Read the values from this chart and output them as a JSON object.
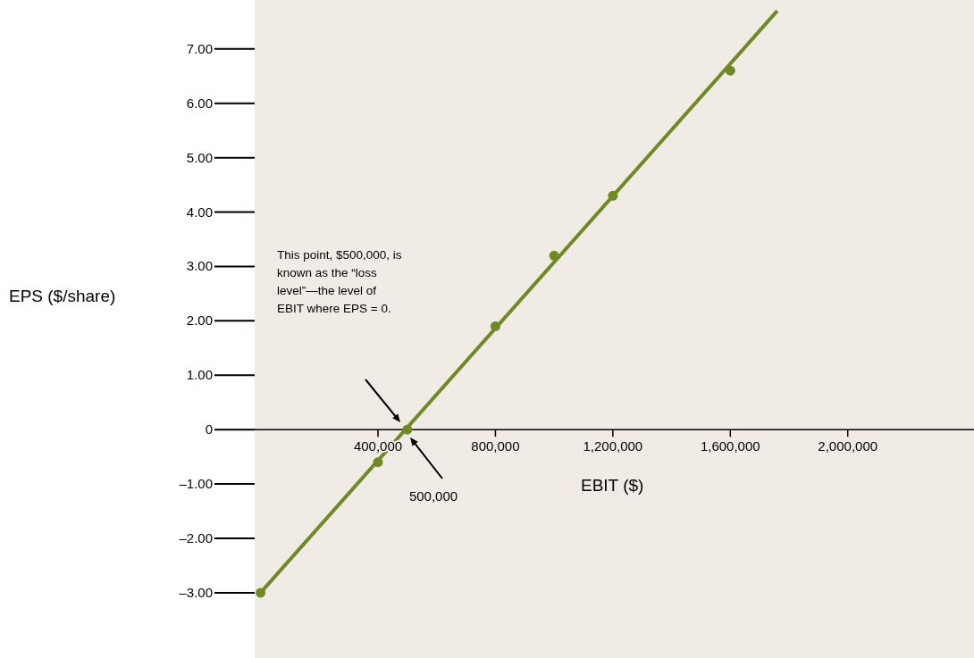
{
  "chart_data": {
    "type": "line",
    "xlabel": "EBIT ($)",
    "ylabel": "EPS ($/share)",
    "series": [
      {
        "color": "#6f8a23",
        "x": [
          0,
          1760000
        ],
        "values": [
          -3,
          7.7
        ],
        "marker": "none"
      },
      {
        "type": "scatter",
        "color": "#6f8a23",
        "x": [
          0,
          400000,
          500000,
          800000,
          1000000,
          1200000,
          1600000
        ],
        "values": [
          -3,
          -0.6,
          0,
          1.9,
          3.2,
          4.3,
          6.6
        ],
        "marker": "circle"
      }
    ],
    "xlim": [
      -20000,
      2430000
    ],
    "ylim": [
      -4.2,
      7.9
    ],
    "xticks": [
      {
        "value": 400000,
        "label": "400,000"
      },
      {
        "value": 800000,
        "label": "800,000"
      },
      {
        "value": 1200000,
        "label": "1,200,000"
      },
      {
        "value": 1600000,
        "label": "1,600,000"
      },
      {
        "value": 2000000,
        "label": "2,000,000"
      }
    ],
    "yticks": [
      {
        "value": -3,
        "label": "–3.00"
      },
      {
        "value": -2,
        "label": "–2.00"
      },
      {
        "value": -1,
        "label": "–1.00"
      },
      0,
      {
        "value": 1,
        "label": "1.00"
      },
      {
        "value": 2,
        "label": "2.00"
      },
      {
        "value": 3,
        "label": "3.00"
      },
      {
        "value": 4,
        "label": "4.00"
      },
      {
        "value": 5,
        "label": "5.00"
      },
      {
        "value": 6,
        "label": "6.00"
      },
      {
        "value": 7,
        "label": "7.00"
      }
    ],
    "grid": false,
    "annotations": [
      "This point, $500,000, is known as the “loss level”—the level of EBIT where EPS = 0.",
      "500,000"
    ]
  }
}
